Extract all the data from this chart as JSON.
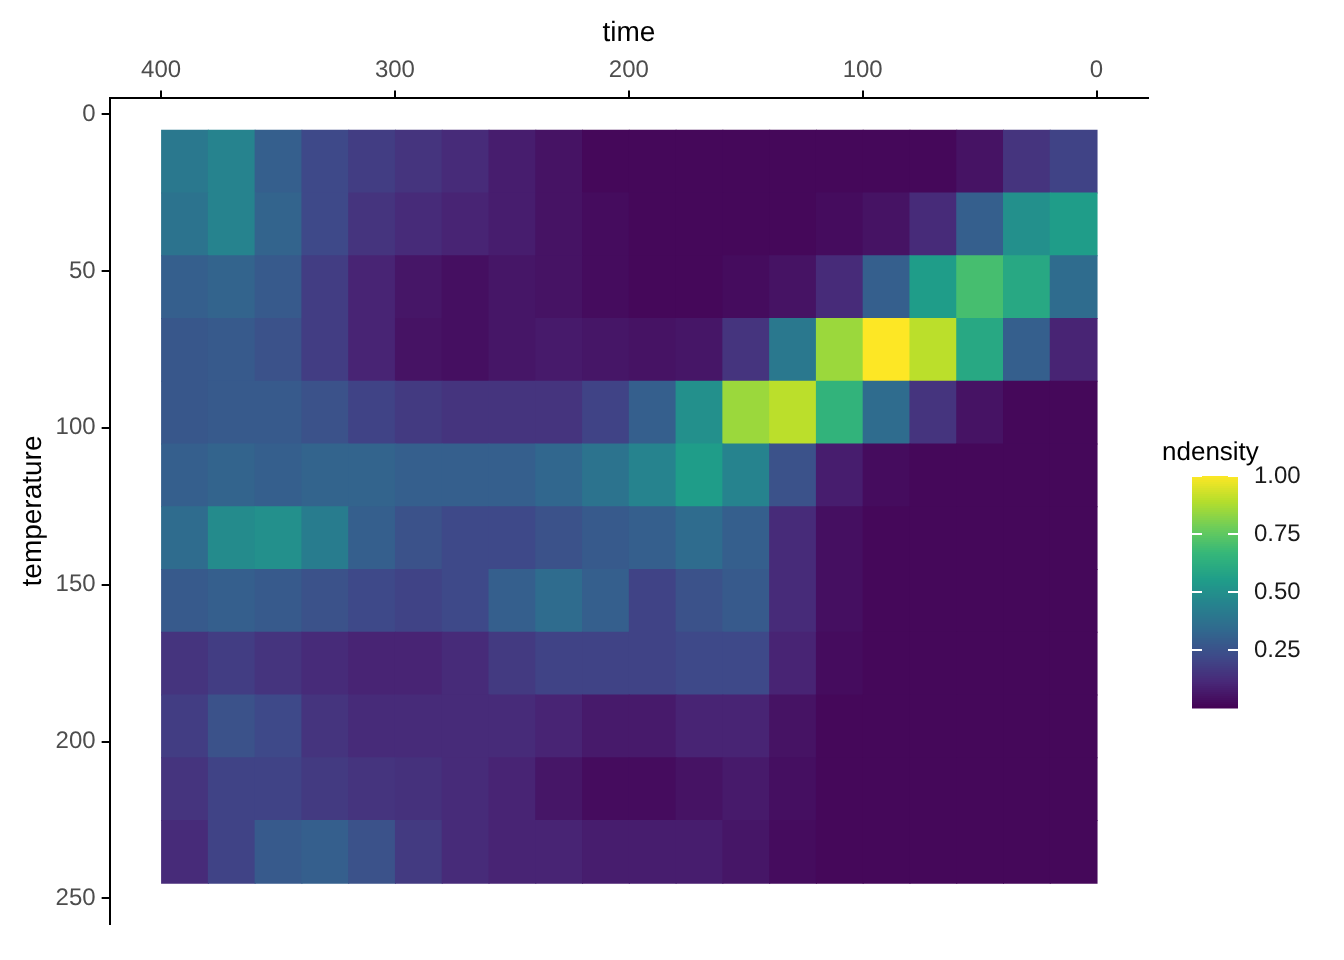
{
  "chart_data": {
    "type": "heatmap",
    "xlabel": "time",
    "ylabel": "temperature",
    "legend_title": "ndensity",
    "x": [
      390,
      370,
      350,
      330,
      310,
      290,
      270,
      250,
      230,
      210,
      190,
      170,
      150,
      130,
      110,
      90,
      70,
      50,
      30,
      10
    ],
    "y": [
      15,
      35,
      55,
      75,
      95,
      115,
      135,
      155,
      175,
      195,
      215,
      235
    ],
    "cells": [
      [
        0.4,
        0.45,
        0.3,
        0.22,
        0.18,
        0.15,
        0.12,
        0.08,
        0.05,
        0.02,
        0.02,
        0.02,
        0.02,
        0.02,
        0.02,
        0.02,
        0.02,
        0.05,
        0.15,
        0.2
      ],
      [
        0.38,
        0.45,
        0.32,
        0.22,
        0.15,
        0.12,
        0.1,
        0.08,
        0.05,
        0.03,
        0.02,
        0.02,
        0.02,
        0.02,
        0.03,
        0.05,
        0.12,
        0.3,
        0.5,
        0.55
      ],
      [
        0.3,
        0.32,
        0.28,
        0.18,
        0.1,
        0.06,
        0.04,
        0.06,
        0.05,
        0.03,
        0.02,
        0.02,
        0.03,
        0.05,
        0.12,
        0.3,
        0.55,
        0.7,
        0.6,
        0.35
      ],
      [
        0.27,
        0.28,
        0.25,
        0.18,
        0.1,
        0.05,
        0.04,
        0.06,
        0.07,
        0.06,
        0.05,
        0.06,
        0.15,
        0.4,
        0.85,
        1.0,
        0.9,
        0.6,
        0.3,
        0.1
      ],
      [
        0.27,
        0.28,
        0.28,
        0.25,
        0.2,
        0.17,
        0.15,
        0.15,
        0.15,
        0.2,
        0.3,
        0.5,
        0.85,
        0.9,
        0.65,
        0.35,
        0.15,
        0.05,
        0.02,
        0.02
      ],
      [
        0.3,
        0.32,
        0.3,
        0.32,
        0.32,
        0.3,
        0.3,
        0.3,
        0.33,
        0.38,
        0.45,
        0.55,
        0.45,
        0.25,
        0.08,
        0.03,
        0.02,
        0.02,
        0.02,
        0.02
      ],
      [
        0.35,
        0.48,
        0.5,
        0.42,
        0.3,
        0.25,
        0.22,
        0.22,
        0.25,
        0.28,
        0.3,
        0.35,
        0.3,
        0.12,
        0.04,
        0.02,
        0.02,
        0.02,
        0.02,
        0.02
      ],
      [
        0.28,
        0.3,
        0.28,
        0.25,
        0.22,
        0.2,
        0.22,
        0.3,
        0.35,
        0.3,
        0.2,
        0.25,
        0.28,
        0.12,
        0.04,
        0.02,
        0.02,
        0.02,
        0.02,
        0.02
      ],
      [
        0.15,
        0.18,
        0.15,
        0.12,
        0.1,
        0.1,
        0.12,
        0.17,
        0.2,
        0.2,
        0.2,
        0.22,
        0.22,
        0.1,
        0.03,
        0.02,
        0.02,
        0.02,
        0.02,
        0.02
      ],
      [
        0.18,
        0.25,
        0.22,
        0.15,
        0.12,
        0.12,
        0.12,
        0.12,
        0.1,
        0.07,
        0.07,
        0.1,
        0.1,
        0.05,
        0.02,
        0.02,
        0.02,
        0.02,
        0.02,
        0.02
      ],
      [
        0.15,
        0.2,
        0.2,
        0.17,
        0.15,
        0.14,
        0.12,
        0.1,
        0.06,
        0.03,
        0.03,
        0.05,
        0.07,
        0.04,
        0.02,
        0.02,
        0.02,
        0.02,
        0.02,
        0.02
      ],
      [
        0.12,
        0.2,
        0.28,
        0.3,
        0.25,
        0.17,
        0.12,
        0.1,
        0.1,
        0.08,
        0.08,
        0.08,
        0.06,
        0.03,
        0.02,
        0.02,
        0.02,
        0.02,
        0.02,
        0.02
      ]
    ],
    "xlim": [
      422,
      -22
    ],
    "xticks": [
      400,
      300,
      200,
      100,
      0
    ],
    "ylim": [
      258,
      -5
    ],
    "yticks": [
      0,
      50,
      100,
      150,
      200,
      250
    ],
    "clim": [
      0,
      1
    ],
    "cticks": [
      {
        "value": 0.25,
        "label": "0.25"
      },
      {
        "value": 0.5,
        "label": "0.50"
      },
      {
        "value": 0.75,
        "label": "0.75"
      },
      {
        "value": 1,
        "label": "1.00"
      }
    ],
    "grid": false
  }
}
